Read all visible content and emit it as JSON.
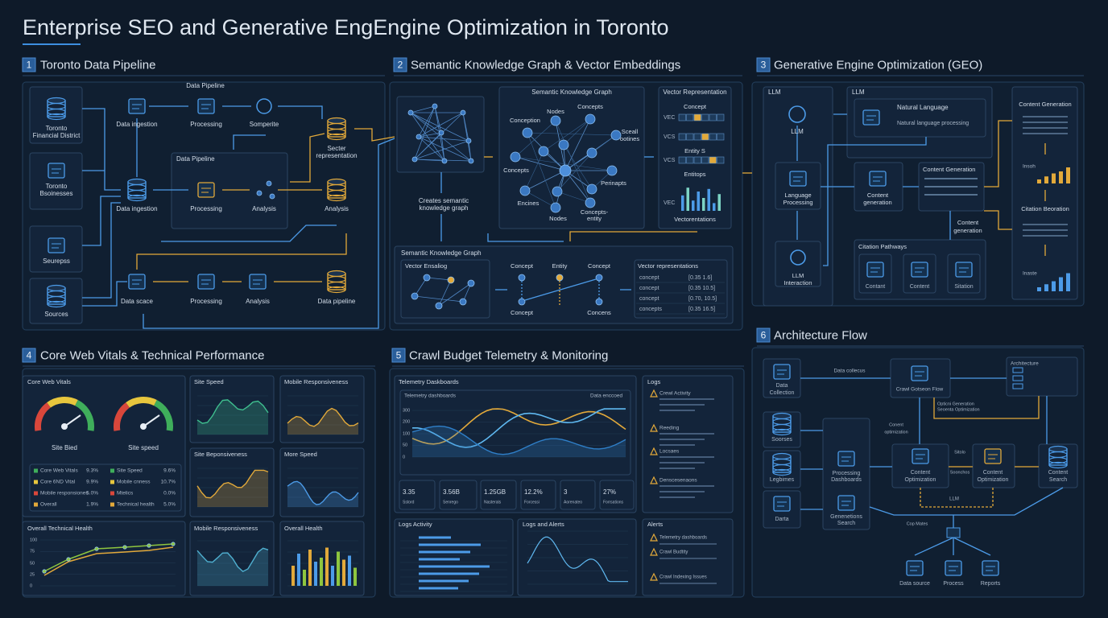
{
  "title": "Enterprise SEO and Generative EngEngine Optimization in Toronto",
  "sections": [
    {
      "number": "1",
      "title": "Toronto Data Pipeline",
      "labels": [
        "Toronto",
        "Financial District",
        "Toronto",
        "Bsoinesses",
        "Seurepss",
        "Sources",
        "Data Pipeline",
        "Data ingestion",
        "Processing",
        "Somperite",
        "Secter",
        "representation",
        "Data Pipeline",
        "Data ingestion",
        "Processing",
        "Analysis",
        "Analysis",
        "Data scace",
        "Processing",
        "Analysis",
        "Data pipeline"
      ]
    },
    {
      "number": "2",
      "title": "Semantic Knowledge Graph & Vector Embeddings",
      "labels": [
        "Semantic Knowledge Graph",
        "Vector Representation",
        "Nodes",
        "Concepts",
        "Conception",
        "Sceall",
        "ootines",
        "Concepts",
        "Encines",
        "Nodes",
        "Perinapts",
        "Concepts-",
        "entity",
        "Concept",
        "VEC",
        "VCS",
        "Entity S",
        "VCS",
        "Entitops",
        "VEC",
        "Vectorentations",
        "Creates semantic",
        "knowledge graph",
        "Semantic Knowledge Graph",
        "Vector Ensaliog",
        "Concept",
        "Entity",
        "Concept",
        "Concept",
        "Concens",
        "Vector representations",
        "concept",
        "[0.35 1.6]",
        "concept",
        "[0.35 10.5]",
        "concept",
        "[0.70, 10.5]",
        "concepts",
        "[0.35 16.5]"
      ]
    },
    {
      "number": "3",
      "title": "Generative Engine Optimization (GEO)",
      "labels": [
        "LLM",
        "LLM",
        "Language",
        "Processing",
        "LLM",
        "Interaction",
        "LLM",
        "Natural Language",
        "Natural language processing",
        "Content",
        "generation",
        "Content Generation",
        "Content",
        "generation",
        "Citation Pathways",
        "Contant",
        "Content",
        "Sitation",
        "Content Generation",
        "Insoh",
        "Citation Beoration",
        "Inaste"
      ]
    },
    {
      "number": "4",
      "title": "Core Web Vitals & Technical Performance",
      "labels": [
        "Core Web Vitals",
        "Site Bied",
        "Site speed",
        "Core Web Vitals",
        "9.3%",
        "Core 6ND Vital",
        "9.9%",
        "Mobile responsiones",
        "5.0%",
        "Overall",
        "1.9%",
        "Site Speed",
        "9.6%",
        "Mobile cnness",
        "10.7%",
        "Mtelics",
        "0.0%",
        "Technical health",
        "5.0%",
        "Site Speed",
        "Mobile Responsiveness",
        "Site Beponsiveness",
        "More Speed",
        "Overall Technical Health",
        "Mobile Responsiveness",
        "Overall Health",
        "100",
        "75",
        "50",
        "25",
        "0"
      ]
    },
    {
      "number": "5",
      "title": "Crawl Budget Telemetry & Monitoring",
      "labels": [
        "Telemetry Daskboards",
        "Telemetry dashboards",
        "Data enccoed",
        "3.35",
        "Sstord",
        "3.56B",
        "Senrego",
        "1.25GB",
        "Nasterals",
        "12.2%",
        "Forcessi",
        "3",
        "Aorenateo",
        "27%",
        "Forrsations",
        "Logs",
        "Crewl Activity",
        "Reeding",
        "Locsaes",
        "Denscesenaons",
        "Logs Activity",
        "Logs and Alerts",
        "Alerts",
        "Telemetry dashboards",
        "Crawl Budtity",
        "Crawl Indexing Issues",
        "300",
        "200",
        "100",
        "50",
        "0"
      ]
    },
    {
      "number": "6",
      "title": "Architecture Flow",
      "labels": [
        "Data",
        "Collection",
        "Data collecus",
        "Crawl Gotseon Flow",
        "Architecture",
        "Opticni Generation",
        "Seoenta Optimization",
        "Conent",
        "optimization",
        "Soorses",
        "Legbimes",
        "Darta",
        "Processing",
        "Dashboards",
        "Genenetions",
        "Search",
        "Content",
        "Optimization",
        "Sitolo",
        "Soonchos",
        "Content",
        "Optimization",
        "Content",
        "Search",
        "LLM",
        "Cop Mates",
        "Data source",
        "Process",
        "Reports"
      ]
    }
  ]
}
